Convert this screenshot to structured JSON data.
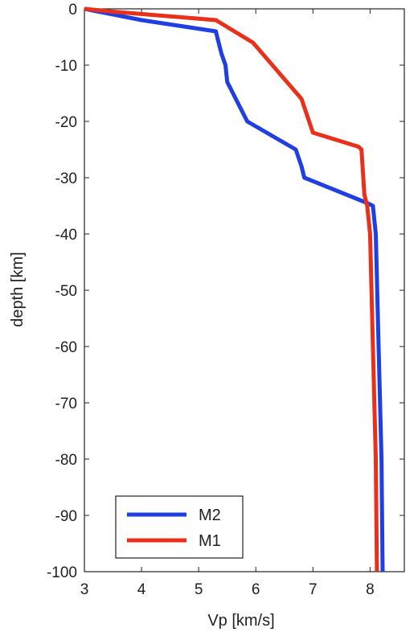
{
  "chart_data": {
    "type": "line",
    "xlabel": "Vp [km/s]",
    "ylabel": "depth [km]",
    "xlim": [
      3,
      8.6
    ],
    "ylim": [
      -100,
      0
    ],
    "xticks": [
      "3",
      "4",
      "5",
      "6",
      "7",
      "8"
    ],
    "yticks": [
      "0",
      "-10",
      "-20",
      "-30",
      "-40",
      "-50",
      "-60",
      "-70",
      "-80",
      "-90",
      "-100"
    ],
    "legend_position": "bottom-left",
    "grid": false,
    "series": [
      {
        "name": "M2",
        "color": "#1f3fe0",
        "points": [
          [
            3.0,
            0
          ],
          [
            4.0,
            -2
          ],
          [
            5.3,
            -4
          ],
          [
            5.35,
            -6
          ],
          [
            5.4,
            -8
          ],
          [
            5.47,
            -10
          ],
          [
            5.5,
            -13
          ],
          [
            5.85,
            -20
          ],
          [
            6.7,
            -25
          ],
          [
            6.8,
            -28
          ],
          [
            6.85,
            -30
          ],
          [
            7.95,
            -34.5
          ],
          [
            8.05,
            -35
          ],
          [
            8.1,
            -40
          ],
          [
            8.15,
            -60
          ],
          [
            8.2,
            -80
          ],
          [
            8.22,
            -100
          ]
        ]
      },
      {
        "name": "M1",
        "color": "#e8311a",
        "points": [
          [
            3.0,
            0
          ],
          [
            3.5,
            -0.5
          ],
          [
            5.3,
            -2
          ],
          [
            5.95,
            -6
          ],
          [
            6.8,
            -16
          ],
          [
            7.0,
            -22
          ],
          [
            7.8,
            -24.5
          ],
          [
            7.85,
            -25
          ],
          [
            7.9,
            -33
          ],
          [
            7.95,
            -35
          ],
          [
            8.0,
            -40
          ],
          [
            8.05,
            -60
          ],
          [
            8.1,
            -80
          ],
          [
            8.12,
            -100
          ]
        ]
      }
    ]
  }
}
